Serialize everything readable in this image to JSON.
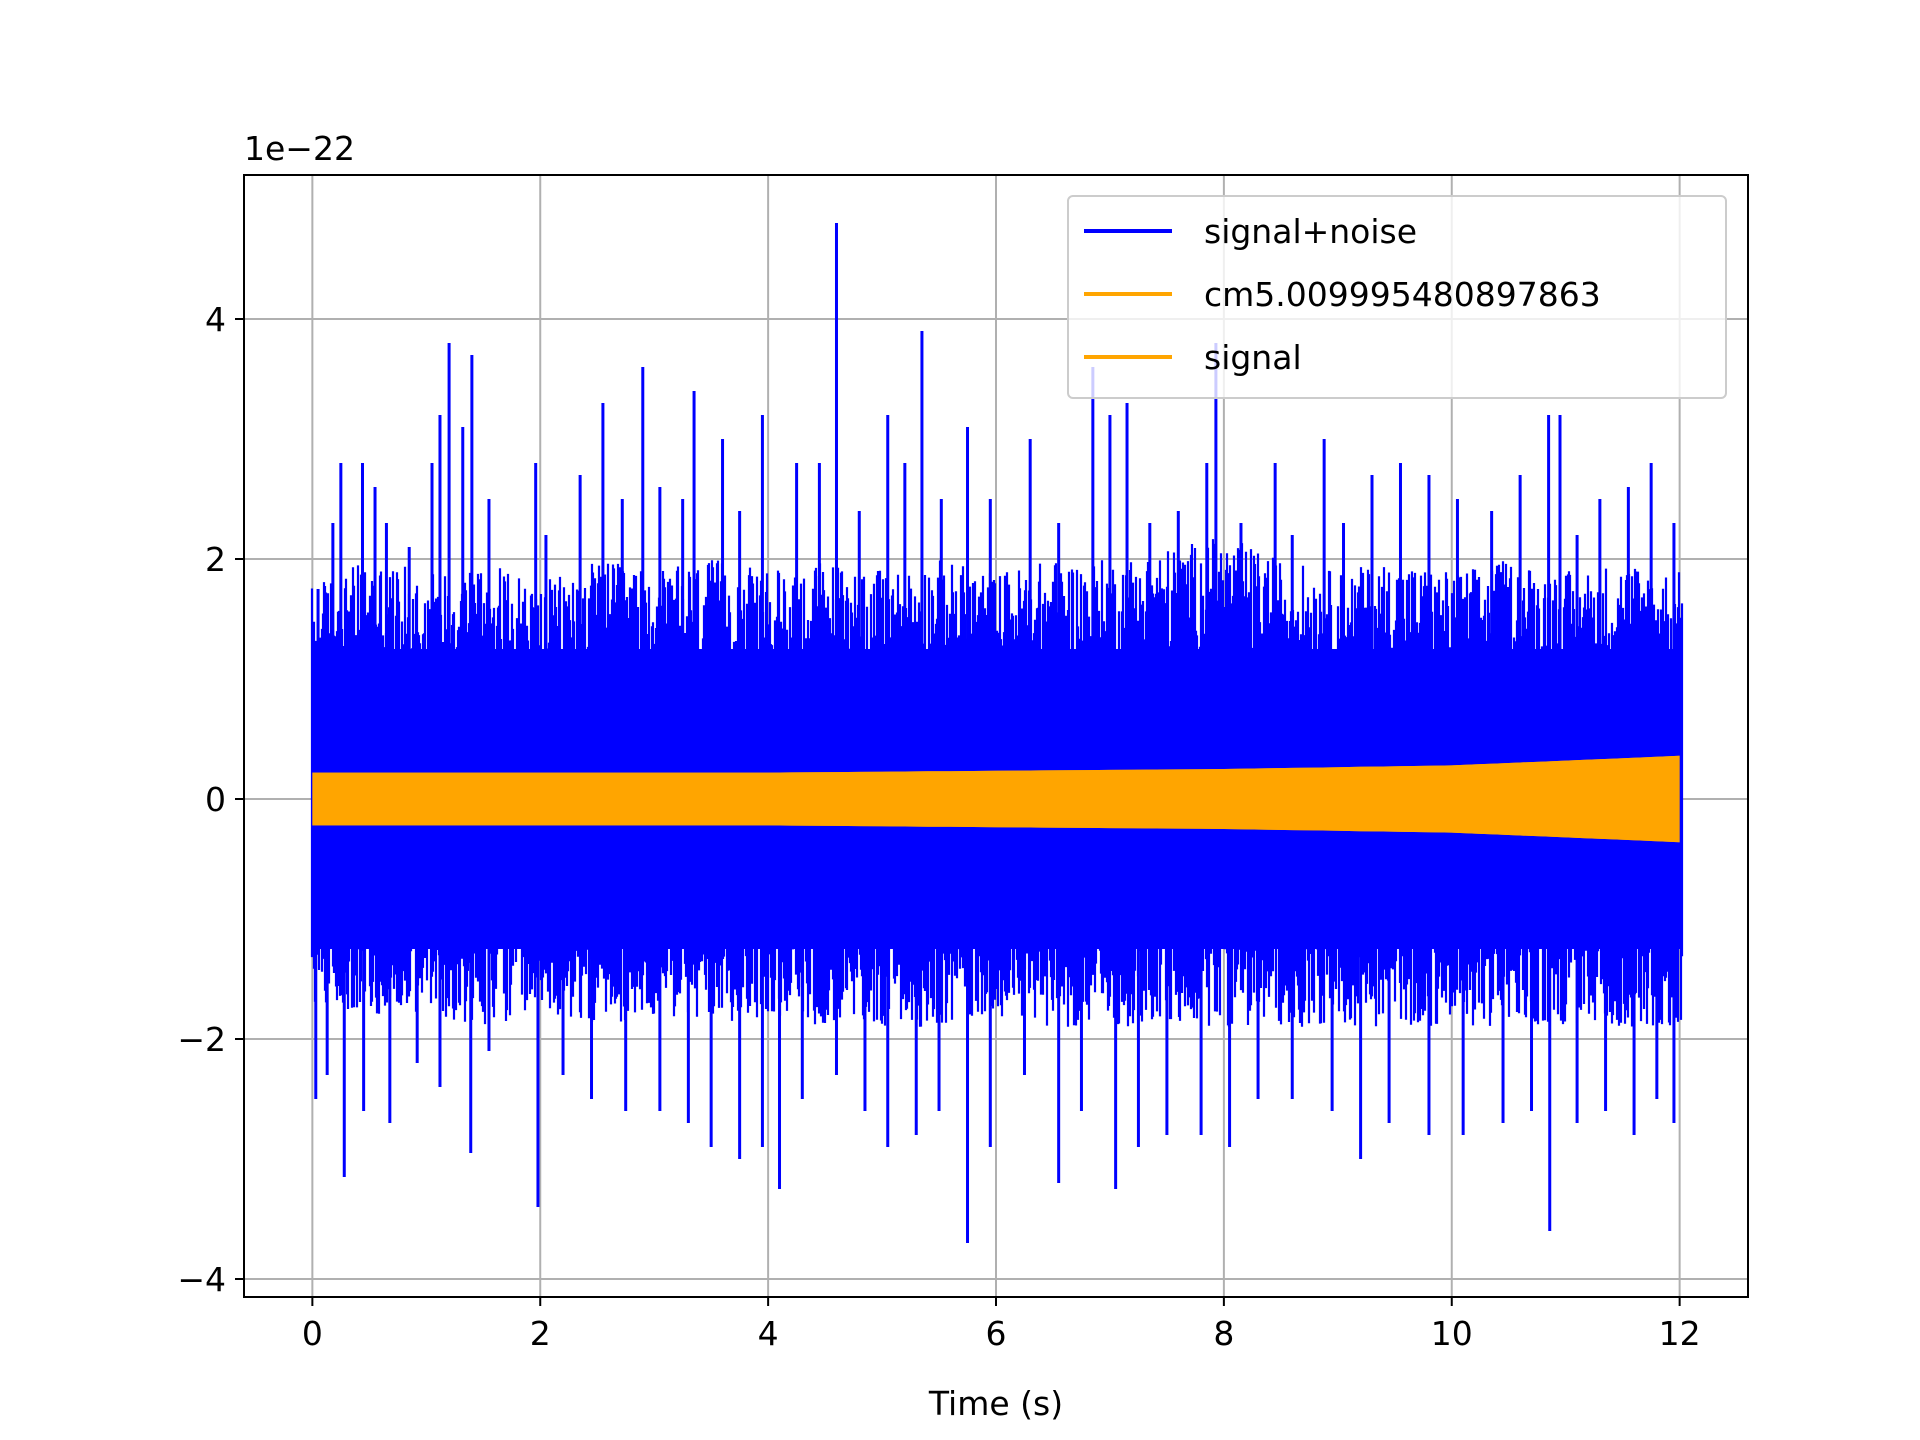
{
  "chart_data": {
    "type": "line",
    "title": "",
    "xlabel": "Time (s)",
    "ylabel": "",
    "y_offset_label": "1e−22",
    "y_scale_exponent": -22,
    "xlim": [
      -0.6,
      12.6
    ],
    "ylim": [
      -4.15,
      5.2
    ],
    "grid": true,
    "legend_placement": "upper right",
    "x_ticks": [
      {
        "value": 0,
        "label": "0"
      },
      {
        "value": 2,
        "label": "2"
      },
      {
        "value": 4,
        "label": "4"
      },
      {
        "value": 6,
        "label": "6"
      },
      {
        "value": 8,
        "label": "8"
      },
      {
        "value": 10,
        "label": "10"
      },
      {
        "value": 12,
        "label": "12"
      }
    ],
    "y_ticks": [
      {
        "value": -4,
        "label": "−4"
      },
      {
        "value": -2,
        "label": "−2"
      },
      {
        "value": 0,
        "label": "0"
      },
      {
        "value": 2,
        "label": "2"
      },
      {
        "value": 4,
        "label": "4"
      }
    ],
    "series": [
      {
        "name": "signal+noise",
        "color": "#0000ff",
        "x_range": [
          0,
          12.02
        ],
        "envelope": {
          "x": [
            0,
            0.5,
            1,
            1.5,
            2,
            2.5,
            3,
            3.5,
            4,
            4.5,
            5,
            5.5,
            6,
            6.5,
            7,
            7.5,
            8,
            8.5,
            9,
            9.5,
            10,
            10.5,
            11,
            11.5,
            12
          ],
          "typical_max": [
            1.8,
            2.0,
            1.9,
            2.0,
            1.8,
            2.0,
            1.9,
            2.0,
            1.9,
            2.0,
            1.9,
            2.0,
            1.9,
            2.0,
            2.0,
            2.1,
            2.2,
            2.0,
            1.9,
            2.0,
            1.9,
            2.0,
            1.9,
            2.0,
            1.9
          ],
          "typical_min": [
            -1.7,
            -1.8,
            -1.8,
            -1.9,
            -1.8,
            -1.9,
            -1.8,
            -1.9,
            -1.8,
            -1.9,
            -1.9,
            -1.9,
            -1.8,
            -1.9,
            -1.9,
            -1.9,
            -1.9,
            -1.9,
            -1.9,
            -1.9,
            -1.9,
            -1.9,
            -1.9,
            -1.9,
            -1.9
          ]
        },
        "peaks": [
          {
            "x": 0.05,
            "y": 1.75
          },
          {
            "x": 0.18,
            "y": 2.3
          },
          {
            "x": 0.25,
            "y": 2.8
          },
          {
            "x": 0.44,
            "y": 2.8
          },
          {
            "x": 0.55,
            "y": 2.6
          },
          {
            "x": 0.65,
            "y": 2.3
          },
          {
            "x": 0.85,
            "y": 2.1
          },
          {
            "x": 1.05,
            "y": 2.8
          },
          {
            "x": 1.12,
            "y": 3.2
          },
          {
            "x": 1.2,
            "y": 3.8
          },
          {
            "x": 1.32,
            "y": 3.1
          },
          {
            "x": 1.4,
            "y": 3.7
          },
          {
            "x": 1.55,
            "y": 2.5
          },
          {
            "x": 1.96,
            "y": 2.8
          },
          {
            "x": 2.05,
            "y": 2.2
          },
          {
            "x": 2.35,
            "y": 2.7
          },
          {
            "x": 2.55,
            "y": 3.3
          },
          {
            "x": 2.72,
            "y": 2.5
          },
          {
            "x": 2.9,
            "y": 3.6
          },
          {
            "x": 3.05,
            "y": 2.6
          },
          {
            "x": 3.25,
            "y": 2.5
          },
          {
            "x": 3.35,
            "y": 3.4
          },
          {
            "x": 3.6,
            "y": 3.0
          },
          {
            "x": 3.75,
            "y": 2.4
          },
          {
            "x": 3.95,
            "y": 3.2
          },
          {
            "x": 4.25,
            "y": 2.8
          },
          {
            "x": 4.45,
            "y": 2.8
          },
          {
            "x": 4.6,
            "y": 4.8
          },
          {
            "x": 4.8,
            "y": 2.4
          },
          {
            "x": 5.05,
            "y": 3.2
          },
          {
            "x": 5.2,
            "y": 2.8
          },
          {
            "x": 5.35,
            "y": 3.9
          },
          {
            "x": 5.52,
            "y": 2.5
          },
          {
            "x": 5.75,
            "y": 3.1
          },
          {
            "x": 5.95,
            "y": 2.5
          },
          {
            "x": 6.3,
            "y": 3.0
          },
          {
            "x": 6.55,
            "y": 2.3
          },
          {
            "x": 6.85,
            "y": 3.6
          },
          {
            "x": 7.0,
            "y": 3.2
          },
          {
            "x": 7.15,
            "y": 3.3
          },
          {
            "x": 7.35,
            "y": 2.3
          },
          {
            "x": 7.6,
            "y": 2.4
          },
          {
            "x": 7.85,
            "y": 2.8
          },
          {
            "x": 7.93,
            "y": 3.8
          },
          {
            "x": 8.15,
            "y": 2.3
          },
          {
            "x": 8.45,
            "y": 2.8
          },
          {
            "x": 8.6,
            "y": 2.2
          },
          {
            "x": 8.88,
            "y": 3.0
          },
          {
            "x": 9.05,
            "y": 2.3
          },
          {
            "x": 9.3,
            "y": 2.7
          },
          {
            "x": 9.55,
            "y": 2.8
          },
          {
            "x": 9.8,
            "y": 2.7
          },
          {
            "x": 10.05,
            "y": 2.5
          },
          {
            "x": 10.35,
            "y": 2.4
          },
          {
            "x": 10.6,
            "y": 2.7
          },
          {
            "x": 10.85,
            "y": 3.2
          },
          {
            "x": 10.95,
            "y": 3.2
          },
          {
            "x": 11.1,
            "y": 2.2
          },
          {
            "x": 11.3,
            "y": 2.5
          },
          {
            "x": 11.55,
            "y": 2.6
          },
          {
            "x": 11.75,
            "y": 2.8
          },
          {
            "x": 11.95,
            "y": 2.3
          }
        ],
        "troughs": [
          {
            "x": 0.03,
            "y": -2.5
          },
          {
            "x": 0.13,
            "y": -2.3
          },
          {
            "x": 0.28,
            "y": -3.15
          },
          {
            "x": 0.45,
            "y": -2.6
          },
          {
            "x": 0.68,
            "y": -2.7
          },
          {
            "x": 0.92,
            "y": -2.2
          },
          {
            "x": 1.12,
            "y": -2.4
          },
          {
            "x": 1.39,
            "y": -2.95
          },
          {
            "x": 1.55,
            "y": -2.1
          },
          {
            "x": 1.98,
            "y": -3.4
          },
          {
            "x": 2.2,
            "y": -2.3
          },
          {
            "x": 2.45,
            "y": -2.5
          },
          {
            "x": 2.75,
            "y": -2.6
          },
          {
            "x": 3.05,
            "y": -2.6
          },
          {
            "x": 3.3,
            "y": -2.7
          },
          {
            "x": 3.5,
            "y": -2.9
          },
          {
            "x": 3.75,
            "y": -3.0
          },
          {
            "x": 3.95,
            "y": -2.9
          },
          {
            "x": 4.1,
            "y": -3.25
          },
          {
            "x": 4.3,
            "y": -2.5
          },
          {
            "x": 4.6,
            "y": -2.3
          },
          {
            "x": 4.85,
            "y": -2.6
          },
          {
            "x": 5.05,
            "y": -2.9
          },
          {
            "x": 5.3,
            "y": -2.8
          },
          {
            "x": 5.5,
            "y": -2.6
          },
          {
            "x": 5.75,
            "y": -3.7
          },
          {
            "x": 5.95,
            "y": -2.9
          },
          {
            "x": 6.25,
            "y": -2.3
          },
          {
            "x": 6.55,
            "y": -3.2
          },
          {
            "x": 6.75,
            "y": -2.6
          },
          {
            "x": 7.05,
            "y": -3.25
          },
          {
            "x": 7.25,
            "y": -2.9
          },
          {
            "x": 7.5,
            "y": -2.8
          },
          {
            "x": 7.8,
            "y": -2.8
          },
          {
            "x": 8.05,
            "y": -2.9
          },
          {
            "x": 8.3,
            "y": -2.5
          },
          {
            "x": 8.6,
            "y": -2.5
          },
          {
            "x": 8.95,
            "y": -2.6
          },
          {
            "x": 9.2,
            "y": -3.0
          },
          {
            "x": 9.45,
            "y": -2.7
          },
          {
            "x": 9.8,
            "y": -2.8
          },
          {
            "x": 10.1,
            "y": -2.8
          },
          {
            "x": 10.45,
            "y": -2.7
          },
          {
            "x": 10.7,
            "y": -2.6
          },
          {
            "x": 10.86,
            "y": -3.6
          },
          {
            "x": 11.1,
            "y": -2.7
          },
          {
            "x": 11.35,
            "y": -2.6
          },
          {
            "x": 11.6,
            "y": -2.8
          },
          {
            "x": 11.8,
            "y": -2.5
          },
          {
            "x": 11.95,
            "y": -2.7
          }
        ]
      },
      {
        "name": "cm5.009995480897863",
        "color": "#ffa500",
        "x_range": [
          0,
          12.0
        ],
        "amplitude": {
          "x": [
            0,
            4,
            8,
            10,
            12
          ],
          "y": [
            0.22,
            0.22,
            0.25,
            0.28,
            0.36
          ]
        }
      },
      {
        "name": "signal",
        "color": "#ffa500",
        "x_range": [
          0,
          12.0
        ],
        "amplitude": {
          "x": [
            0,
            4,
            8,
            10,
            12
          ],
          "y": [
            0.22,
            0.22,
            0.25,
            0.28,
            0.36
          ]
        }
      }
    ]
  }
}
